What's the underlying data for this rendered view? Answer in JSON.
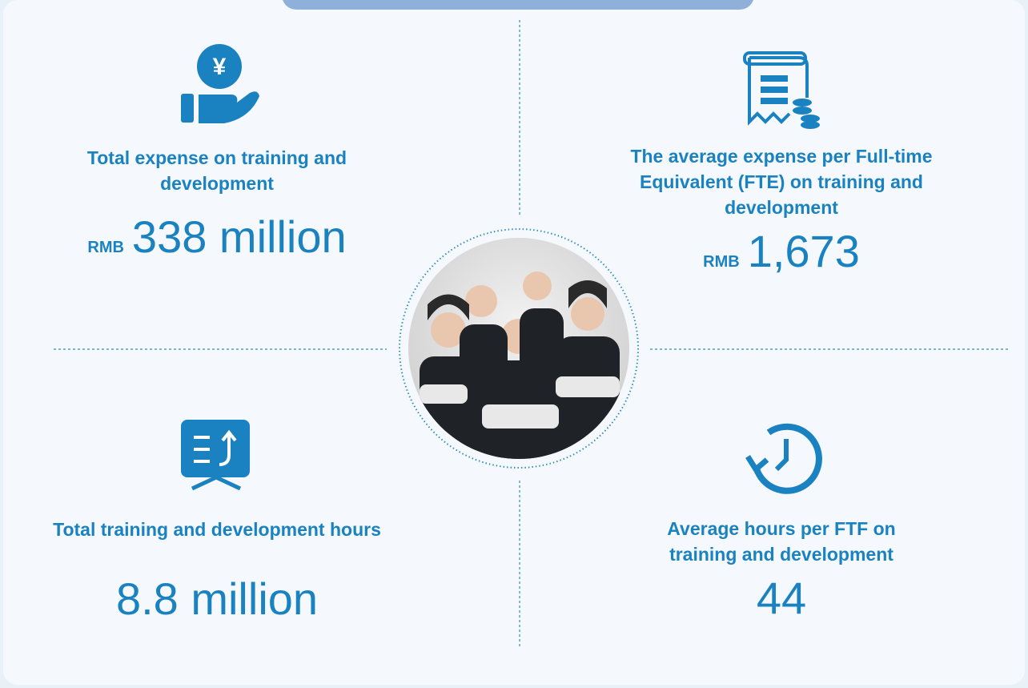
{
  "stats": [
    {
      "label": "Total expense on training and development",
      "prefix": "RMB",
      "value": "338 million"
    },
    {
      "label": "The average expense per Full-time Equivalent (FTE) on training and development",
      "prefix": "RMB",
      "value": "1,673"
    },
    {
      "label": "Total training and development hours",
      "value": "8.8 million"
    },
    {
      "label": "Average hours per FTF on training and development",
      "value": "44"
    }
  ]
}
